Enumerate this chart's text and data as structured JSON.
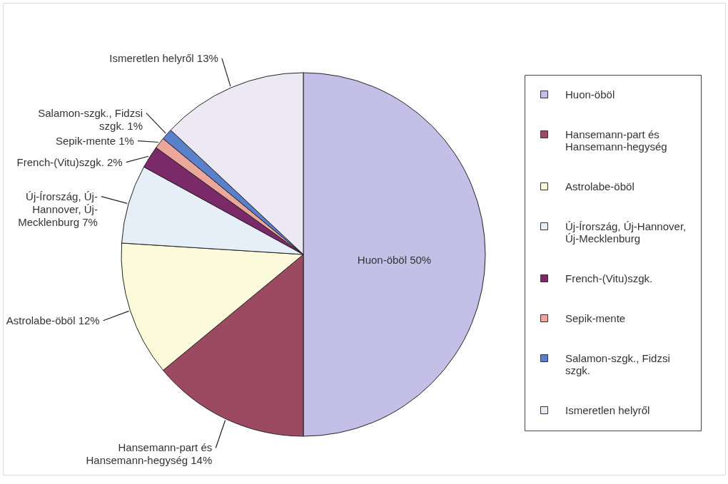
{
  "chart_data": {
    "type": "pie",
    "categories": [
      "Huon-öböl",
      "Hansemann-part és Hansemann-hegység",
      "Astrolabe-öböl",
      "Új-Írország, Új-Hannover, Új-Mecklenburg",
      "French-(Vitu)szgk.",
      "Sepik-mente",
      "Salamon-szgk., Fidzsi szgk.",
      "Ismeretlen helyről"
    ],
    "values": [
      50,
      14,
      12,
      7,
      2,
      1,
      1,
      13
    ],
    "colors": [
      "#c4bfe6",
      "#9c4a62",
      "#fbfbdc",
      "#e6eef7",
      "#7a2a68",
      "#eba89a",
      "#5a80cc",
      "#ece8f4"
    ],
    "value_labels": [
      "50%",
      "14%",
      "12%",
      "7%",
      "2%",
      "1%",
      "1%",
      "13%"
    ],
    "legend": "right"
  }
}
